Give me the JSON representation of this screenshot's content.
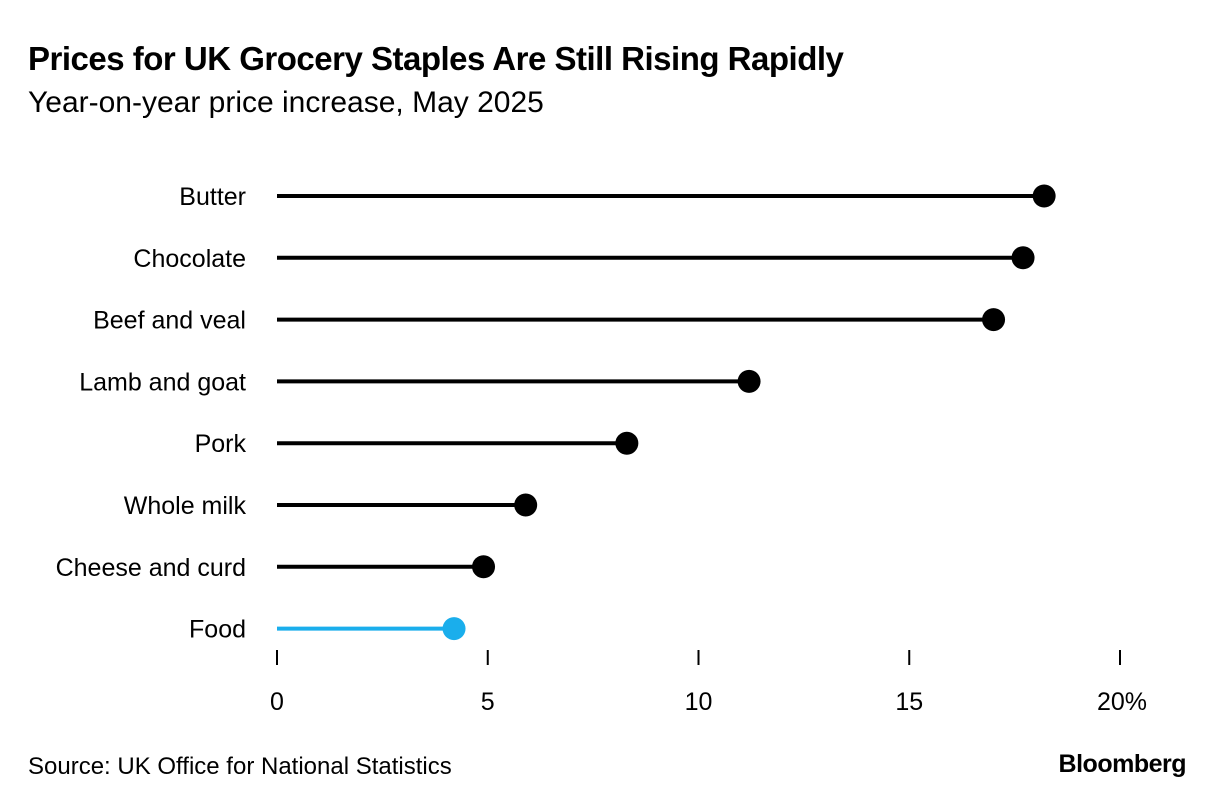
{
  "chart_data": {
    "type": "lollipop",
    "title": "Prices for UK Grocery Staples Are Still Rising Rapidly",
    "subtitle": "Year-on-year price increase, May 2025",
    "categories": [
      "Butter",
      "Chocolate",
      "Beef and veal",
      "Lamb and goat",
      "Pork",
      "Whole milk",
      "Cheese and curd",
      "Food"
    ],
    "values": [
      18.2,
      17.7,
      17.0,
      11.2,
      8.3,
      5.9,
      4.9,
      4.2
    ],
    "highlight": [
      "Food"
    ],
    "colors": {
      "default": "#000000",
      "highlight": "#1aaeec"
    },
    "xlabel": "",
    "ylabel": "",
    "xlim": [
      0,
      20
    ],
    "x_ticks": [
      0,
      5,
      10,
      15,
      20
    ],
    "x_tick_labels": [
      "0",
      "5",
      "10",
      "15",
      "20%"
    ],
    "grid": false,
    "source": "Source: UK Office for National Statistics",
    "branding": "Bloomberg"
  }
}
